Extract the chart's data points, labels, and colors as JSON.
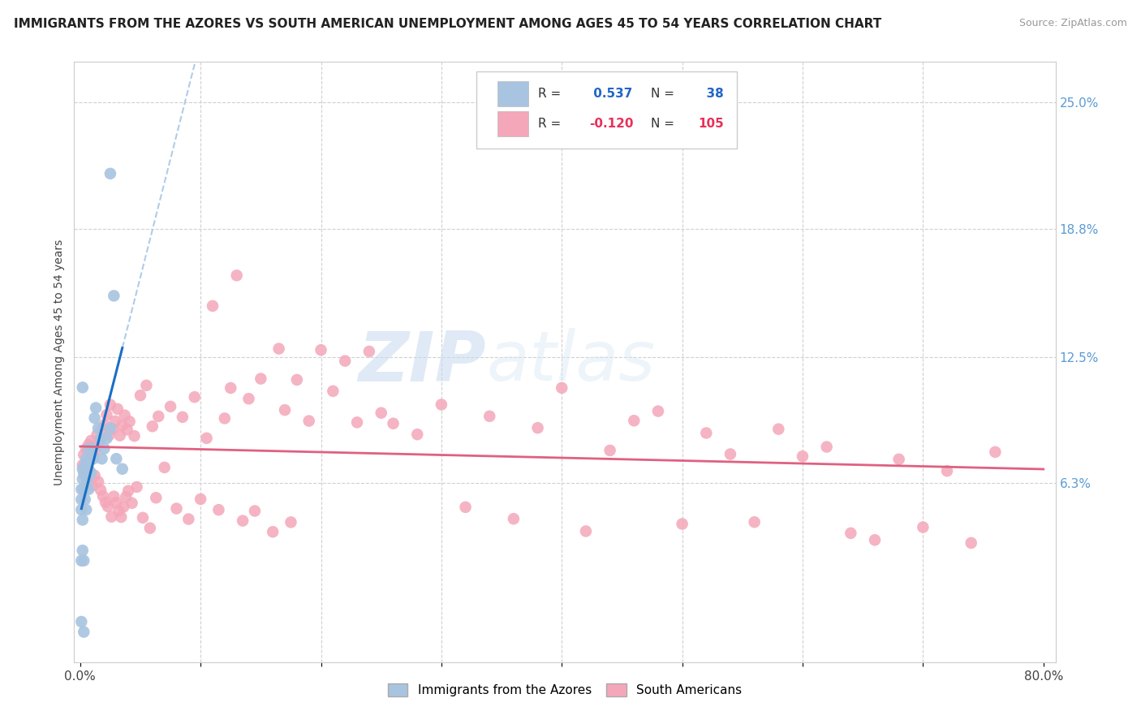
{
  "title": "IMMIGRANTS FROM THE AZORES VS SOUTH AMERICAN UNEMPLOYMENT AMONG AGES 45 TO 54 YEARS CORRELATION CHART",
  "source": "Source: ZipAtlas.com",
  "ylabel": "Unemployment Among Ages 45 to 54 years",
  "right_yticks": [
    "25.0%",
    "18.8%",
    "12.5%",
    "6.3%"
  ],
  "right_ytick_vals": [
    0.25,
    0.188,
    0.125,
    0.063
  ],
  "xlim": [
    -0.005,
    0.81
  ],
  "ylim": [
    -0.025,
    0.27
  ],
  "color_azores": "#a8c4e0",
  "color_south_american": "#f4a7b9",
  "color_line_azores": "#1a6fc4",
  "color_line_sa": "#e06080",
  "color_dashed": "#b0cce8",
  "legend_label1": "Immigrants from the Azores",
  "legend_label2": "South Americans",
  "watermark_zip": "ZIP",
  "watermark_atlas": "atlas",
  "title_fontsize": 11,
  "source_fontsize": 9,
  "tick_fontsize": 11
}
